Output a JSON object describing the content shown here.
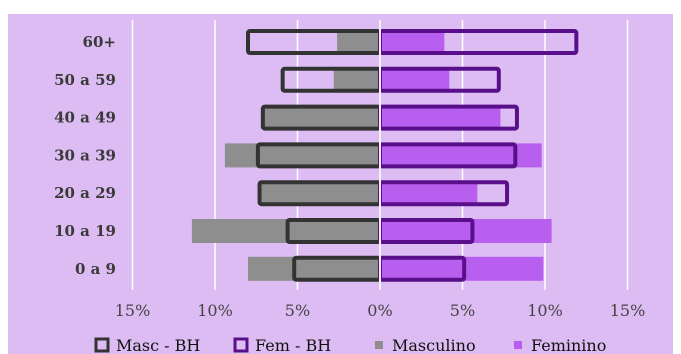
{
  "chart_data": {
    "type": "bar",
    "orientation": "horizontal",
    "layout": "population-pyramid",
    "categories": [
      "60+",
      "50 a 59",
      "40 a 49",
      "30 a 39",
      "20 a 29",
      "10 a 19",
      "0 a 9"
    ],
    "series": [
      {
        "name": "Masc - BH",
        "side": "left",
        "style": "outline",
        "values": [
          8.0,
          5.9,
          7.1,
          7.4,
          7.3,
          5.6,
          5.2
        ]
      },
      {
        "name": "Fem - BH",
        "side": "right",
        "style": "outline",
        "values": [
          11.9,
          7.2,
          8.3,
          8.2,
          7.7,
          5.6,
          5.1
        ]
      },
      {
        "name": "Masculino",
        "side": "left",
        "style": "filled",
        "values": [
          2.6,
          2.8,
          7.1,
          9.4,
          7.3,
          11.4,
          8.0
        ]
      },
      {
        "name": "Feminino",
        "side": "right",
        "style": "filled",
        "values": [
          3.9,
          4.2,
          7.3,
          9.8,
          5.9,
          10.4,
          9.9
        ]
      }
    ],
    "xlim": [
      -15,
      15
    ],
    "x_ticks": [
      "15%",
      "10%",
      "5%",
      "0%",
      "5%",
      "10%",
      "15%"
    ],
    "x_tick_values": [
      -15,
      -10,
      -5,
      0,
      5,
      10,
      15
    ],
    "grid": "vertical",
    "legend_position": "bottom",
    "colors": {
      "background": "#dcbcf2",
      "masc_outline": "#333333",
      "fem_outline": "#5a0f8a",
      "masculino_fill": "#8e8e8e",
      "feminino_fill": "#b85ff0",
      "grid": "#ffffff"
    }
  }
}
